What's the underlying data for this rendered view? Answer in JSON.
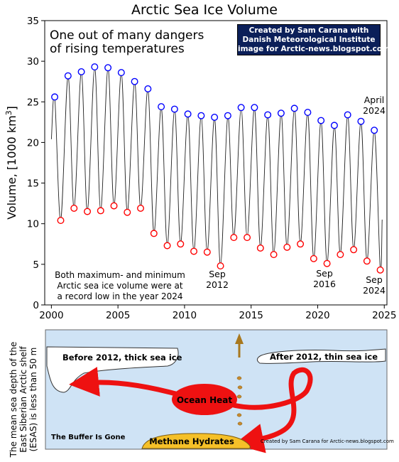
{
  "chart_data": {
    "type": "scatter",
    "title": "Arctic Sea Ice Volume",
    "ylabel": "Volume, [1000 km³]",
    "ylabel_main": "Volume, [1000 km",
    "ylabel_sup": "3",
    "ylabel_end": "]",
    "xlim": [
      1999.5,
      2025.2
    ],
    "ylim": [
      0,
      35
    ],
    "xticks": [
      "2000",
      "2005",
      "2010",
      "2015",
      "2020",
      "2025"
    ],
    "yticks": [
      "0",
      "5",
      "10",
      "15",
      "20",
      "25",
      "30",
      "35"
    ],
    "grid": false,
    "series": [
      {
        "role": "maximum (April)",
        "color": "#0000ff",
        "x": [
          2000.25,
          2001.25,
          2002.25,
          2003.25,
          2004.25,
          2005.25,
          2006.25,
          2007.25,
          2008.25,
          2009.25,
          2010.25,
          2011.25,
          2012.25,
          2013.25,
          2014.25,
          2015.25,
          2016.25,
          2017.25,
          2018.25,
          2019.25,
          2020.25,
          2021.25,
          2022.25,
          2023.25,
          2024.25
        ],
        "y": [
          25.6,
          28.2,
          28.7,
          29.3,
          29.2,
          28.6,
          27.5,
          26.6,
          24.4,
          24.1,
          23.5,
          23.3,
          23.1,
          23.3,
          24.3,
          24.3,
          23.4,
          23.6,
          24.2,
          23.7,
          22.7,
          22.1,
          23.4,
          22.6,
          21.5
        ]
      },
      {
        "role": "minimum (September)",
        "color": "#ff0000",
        "x": [
          2000.7,
          2001.7,
          2002.7,
          2003.7,
          2004.7,
          2005.7,
          2006.7,
          2007.7,
          2008.7,
          2009.7,
          2010.7,
          2011.7,
          2012.7,
          2013.7,
          2014.7,
          2015.7,
          2016.7,
          2017.7,
          2018.7,
          2019.7,
          2020.7,
          2021.7,
          2022.7,
          2023.7,
          2024.7
        ],
        "y": [
          10.4,
          11.9,
          11.5,
          11.6,
          12.2,
          11.4,
          11.9,
          8.8,
          7.3,
          7.5,
          6.6,
          6.5,
          4.8,
          8.3,
          8.3,
          7.0,
          6.2,
          7.1,
          7.5,
          5.7,
          5.1,
          6.2,
          6.8,
          5.4,
          4.3
        ]
      }
    ],
    "line_start": {
      "x": 2000.0,
      "y": 20.4
    },
    "line_end": {
      "x": 2024.84,
      "y": 10.5
    },
    "annotations": {
      "headline_1": "One out of many dangers",
      "headline_2": "of rising temperatures",
      "april_month": "April",
      "april_year": "2024",
      "sep2012_month": "Sep",
      "sep2012_year": "2012",
      "sep2016_month": "Sep",
      "sep2016_year": "2016",
      "sep2024_month": "Sep",
      "sep2024_year": "2024",
      "note_1": "Both maximum- and minimum",
      "note_2": "Arctic sea ice volume were at",
      "note_3": "a record low in the year 2024"
    }
  },
  "credit": {
    "line1": "Created by Sam Carana with",
    "line2": "Danish Meteorological Institute",
    "line3": "image for Arctic-news.blogspot.com"
  },
  "diagram": {
    "side_label": "The mean sea depth of the East Siberian Arctic shelf (ESAS) is less than 50 m",
    "before_label": "Before 2012, thick sea ice",
    "after_label": "After 2012, thin sea ice",
    "heat_label": "Ocean Heat",
    "methane_label": "Methane Hydrates",
    "buffer_label": "The Buffer Is Gone",
    "credit_small": "Created by Sam Carana for Arctic-news.blogspot.com",
    "colors": {
      "water": "#cfe3f5",
      "ice": "#ffffff",
      "heat": "#ee1111",
      "methane": "#f5c028",
      "bubble": "#c98a2e"
    }
  }
}
